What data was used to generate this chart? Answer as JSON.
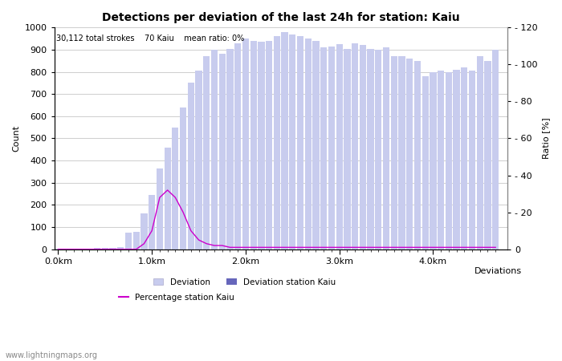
{
  "title": "Detections per deviation of the last 24h for station: Kaiu",
  "subtitle": "30,112 total strokes    70 Kaiu    mean ratio: 0%",
  "xlabel": "Deviations",
  "ylabel_left": "Count",
  "ylabel_right": "Ratio [%]",
  "watermark": "www.lightningmaps.org",
  "ylim_left": [
    0,
    1000
  ],
  "ylim_right": [
    0,
    120
  ],
  "bar_width": 0.85,
  "deviation_bars": [
    2,
    3,
    3,
    4,
    4,
    5,
    5,
    6,
    8,
    75,
    80,
    160,
    245,
    365,
    460,
    550,
    640,
    750,
    805,
    870,
    900,
    880,
    905,
    930,
    950,
    940,
    935,
    940,
    960,
    980,
    970,
    960,
    950,
    940,
    910,
    915,
    925,
    905,
    930,
    920,
    905,
    900,
    910,
    870,
    870,
    860,
    850,
    780,
    800,
    805,
    800,
    810,
    820,
    805,
    870,
    850,
    900
  ],
  "station_bars": [
    0,
    0,
    0,
    0,
    0,
    0,
    0,
    0,
    0,
    0,
    0,
    0,
    0,
    0,
    0,
    0,
    0,
    0,
    0,
    0,
    0,
    0,
    0,
    0,
    0,
    0,
    0,
    0,
    0,
    0,
    0,
    0,
    0,
    0,
    0,
    0,
    0,
    0,
    0,
    0,
    0,
    0,
    0,
    0,
    0,
    0,
    0,
    0,
    0,
    0,
    0,
    0,
    0,
    0,
    0,
    0,
    0
  ],
  "percentage_line": [
    0,
    0,
    0,
    0,
    0,
    0,
    0,
    0,
    0,
    0,
    0,
    3,
    10,
    28,
    32,
    28,
    20,
    10,
    5,
    3,
    2,
    2,
    1,
    1,
    1,
    1,
    1,
    1,
    1,
    1,
    1,
    1,
    1,
    1,
    1,
    1,
    1,
    1,
    1,
    1,
    1,
    1,
    1,
    1,
    1,
    1,
    1,
    1,
    1,
    1,
    1,
    1,
    1,
    1,
    1,
    1,
    1
  ],
  "x_km_per_bar": 0.083333,
  "x_major_tick_km": [
    0.0,
    1.0,
    2.0,
    3.0,
    4.0
  ],
  "bg_color": "#ffffff",
  "bar_color_deviation": "#c8ccee",
  "bar_color_station": "#6666bb",
  "line_color_percentage": "#cc00cc",
  "grid_color": "#bbbbbb",
  "title_fontsize": 10,
  "label_fontsize": 8,
  "tick_fontsize": 8
}
